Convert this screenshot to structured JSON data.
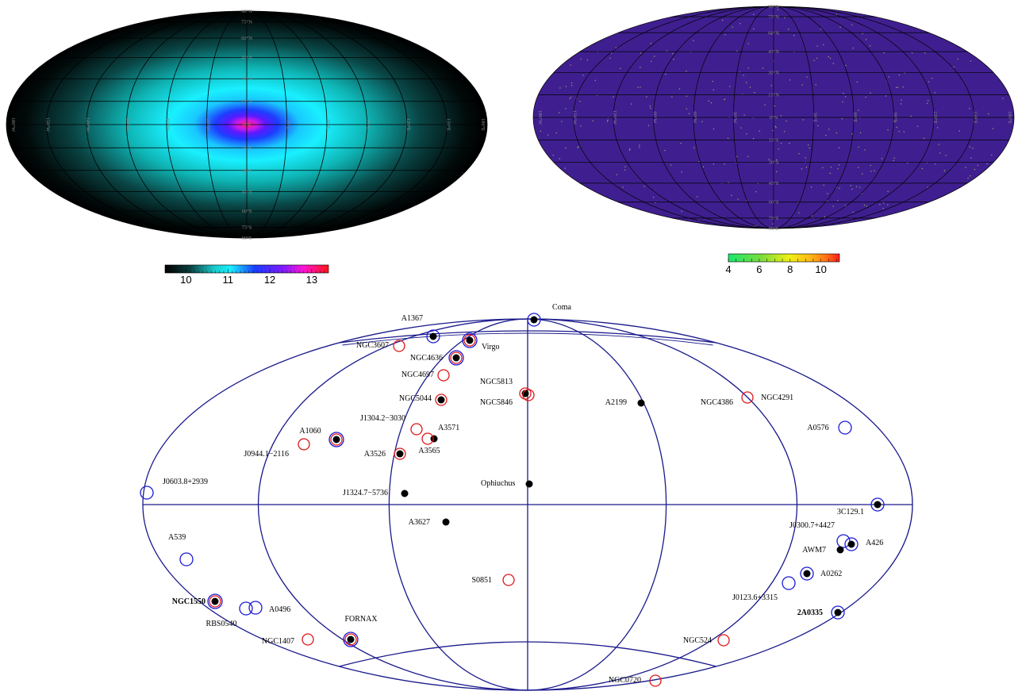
{
  "top_left_map": {
    "grid_labels": {
      "lat": [
        "90°N",
        "75°N",
        "60°N",
        "45°N",
        "30°N",
        "15°N",
        "0°N",
        "15°S",
        "30°S",
        "45°S",
        "60°S",
        "75°S",
        "90°S"
      ],
      "lon": [
        "180°W",
        "150°W",
        "120°W",
        "90°W",
        "60°W",
        "30°W",
        "0°E",
        "30°E",
        "60°E",
        "90°E",
        "120°E",
        "150°E",
        "180°E"
      ]
    },
    "colorbar": {
      "ticks": [
        "10",
        "11",
        "12",
        "13"
      ],
      "colors": [
        "#000000",
        "#0a2b2b",
        "#1aa0a0",
        "#19e6f0",
        "#1a3cff",
        "#7d1aff",
        "#ff14d2",
        "#ff1414"
      ]
    },
    "colors": {
      "center": "#ff1a66",
      "ring": "#1e3cff",
      "mid": "#19f0ff",
      "edge": "#000000"
    }
  },
  "top_right_map": {
    "grid_labels": {
      "lat": [
        "90°N",
        "75°N",
        "60°N",
        "45°N",
        "30°N",
        "15°N",
        "0°N",
        "15°S",
        "30°S",
        "45°S",
        "60°S",
        "75°S",
        "90°S"
      ],
      "lon": [
        "180°W",
        "150°W",
        "120°W",
        "90°W",
        "60°W",
        "30°W",
        "0°E",
        "30°E",
        "60°E",
        "90°E",
        "120°E",
        "150°E",
        "180°E"
      ]
    },
    "colorbar": {
      "ticks": [
        "4",
        "6",
        "8",
        "10"
      ],
      "colors": [
        "#19e66e",
        "#7ddc3c",
        "#f0f014",
        "#ffb414",
        "#ff6414",
        "#ff1e1e"
      ]
    },
    "colors": {
      "fill": "#3f1f8f",
      "speck": "#c8b46e"
    }
  },
  "cluster_map": {
    "colors": {
      "grid": "#1a1a8c",
      "red": "#e01818",
      "blue": "#1a1ad6",
      "black": "#000000"
    },
    "labels": [
      "Coma",
      "A1367",
      "Virgo",
      "NGC3607",
      "NGC4636",
      "NGC4697",
      "NGC5813",
      "NGC5846",
      "NGC5044",
      "A2199",
      "NGC4386",
      "NGC4291",
      "J1304.2−3030",
      "A3571",
      "A1060",
      "A3565",
      "A0576",
      "J0944.1−2116",
      "A3526",
      "J0603.8+2939",
      "Ophiuchus",
      "J1324.7−5736",
      "3C129.1",
      "A3627",
      "J0300.7+4427",
      "A426",
      "A539",
      "AWM7",
      "A0262",
      "S0851",
      "J0123.6+3315",
      "NGC1550",
      "A0496",
      "RBS0540",
      "2A0335",
      "FORNAX",
      "NGC1407",
      "NGC524",
      "NGC0720"
    ]
  }
}
